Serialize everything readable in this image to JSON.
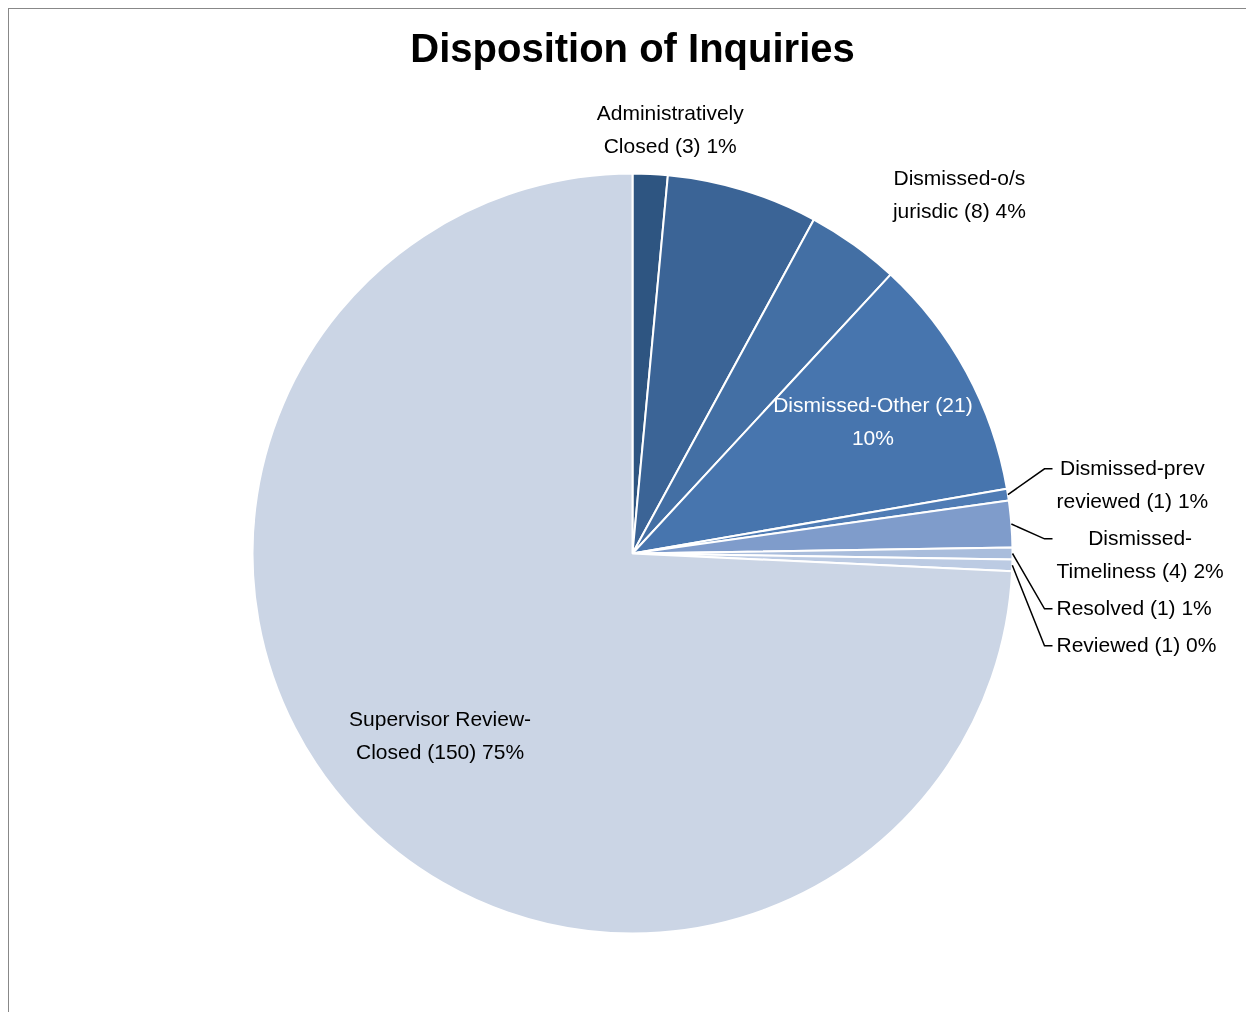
{
  "chart_data": {
    "type": "pie",
    "title": "Disposition of Inquiries",
    "categories": [
      "Administratively Closed (3) 1%",
      null,
      "Dismissed-o/s jurisdic (8) 4%",
      "Dismissed-Other (21) 10%",
      "Dismissed-prev reviewed (1) 1%",
      "Dismissed-Timeliness (4) 2%",
      "Resolved (1) 1%",
      "Reviewed (1) 0%",
      "Supervisor Review-Closed (150) 75%"
    ],
    "values": [
      3,
      13,
      8,
      21,
      1,
      4,
      1,
      1,
      150
    ],
    "colors": [
      "#2e5581",
      "#3b6496",
      "#436fa4",
      "#4775ae",
      "#4f7cb5",
      "#7f9ccb",
      "#a9bddc",
      "#bccbe3",
      "#cbd5e5"
    ],
    "legend": false
  }
}
